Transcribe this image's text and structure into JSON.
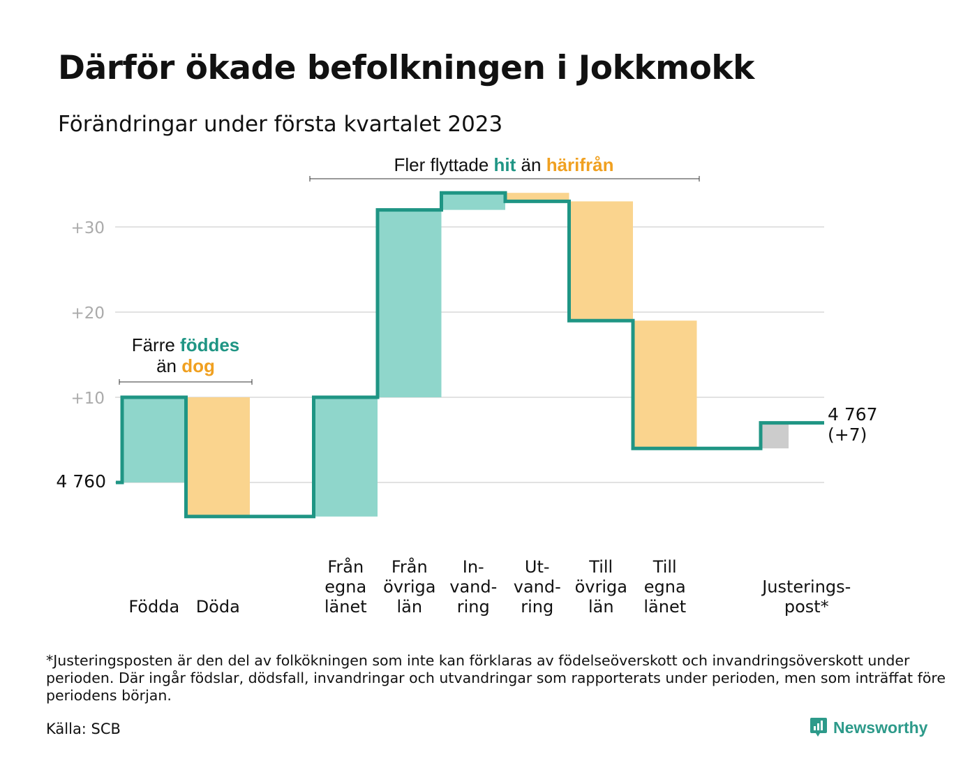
{
  "title": "Därför ökade befolkningen i Jokkmokk",
  "subtitle": "Förändringar under första kvartalet 2023",
  "annotations": {
    "births_deaths": {
      "prefix": "Färre ",
      "green": "föddes",
      "line2_prefix": "än ",
      "orange": "dog"
    },
    "moves": {
      "prefix": "Fler flyttade ",
      "green": "hit",
      "middle": " än ",
      "orange": "härifrån"
    }
  },
  "start_label": "4 760",
  "end_label": {
    "value": "4 767",
    "change": "(+7)"
  },
  "footnote": "*Justeringsposten är den del av folkökningen som inte kan förklaras av födelseöverskott och invandringsöverskott under perioden. Där ingår födslar, dödsfall, invandringar och utvandringar som rapporterats under perioden, men som inträffat före periodens början.",
  "source": "Källa: SCB",
  "brand": "Newsworthy",
  "colors": {
    "line": "#1f9584",
    "increase": "#8fd6cb",
    "decrease": "#fad48e",
    "adjustment": "#cccccc",
    "accent_green": "#1f9584",
    "accent_orange": "#f0a020",
    "grid": "#e2e2e2",
    "tick": "#aaaaaa"
  },
  "chart_data": {
    "type": "waterfall",
    "title": "Därför ökade befolkningen i Jokkmokk",
    "subtitle": "Förändringar under första kvartalet 2023",
    "baseline": 4760,
    "ylim": [
      -8,
      35
    ],
    "yticks": [
      {
        "value": 10,
        "label": "+10"
      },
      {
        "value": 20,
        "label": "+20"
      },
      {
        "value": 30,
        "label": "+30"
      }
    ],
    "grid": true,
    "steps": [
      {
        "lines": [
          "Födda"
        ],
        "slot": 0,
        "change": 10,
        "kind": "increase"
      },
      {
        "lines": [
          "Döda"
        ],
        "slot": 1,
        "change": -14,
        "kind": "decrease"
      },
      {
        "lines": [
          "Från",
          "egna",
          "länet"
        ],
        "slot": 3,
        "change": 14,
        "kind": "increase"
      },
      {
        "lines": [
          "Från",
          "övriga",
          "län"
        ],
        "slot": 4,
        "change": 22,
        "kind": "increase"
      },
      {
        "lines": [
          "In-",
          "vand-",
          "ring"
        ],
        "slot": 5,
        "change": 2,
        "kind": "increase"
      },
      {
        "lines": [
          "Ut-",
          "vand-",
          "ring"
        ],
        "slot": 6,
        "change": -1,
        "kind": "decrease"
      },
      {
        "lines": [
          "Till",
          "övriga",
          "län"
        ],
        "slot": 7,
        "change": -14,
        "kind": "decrease"
      },
      {
        "lines": [
          "Till",
          "egna",
          "länet"
        ],
        "slot": 8,
        "change": -15,
        "kind": "decrease"
      },
      {
        "lines": [
          "Justerings-",
          "post*"
        ],
        "slot": 10,
        "change": 3,
        "kind": "adjustment"
      }
    ],
    "end_value": 4767,
    "end_change": 7
  }
}
